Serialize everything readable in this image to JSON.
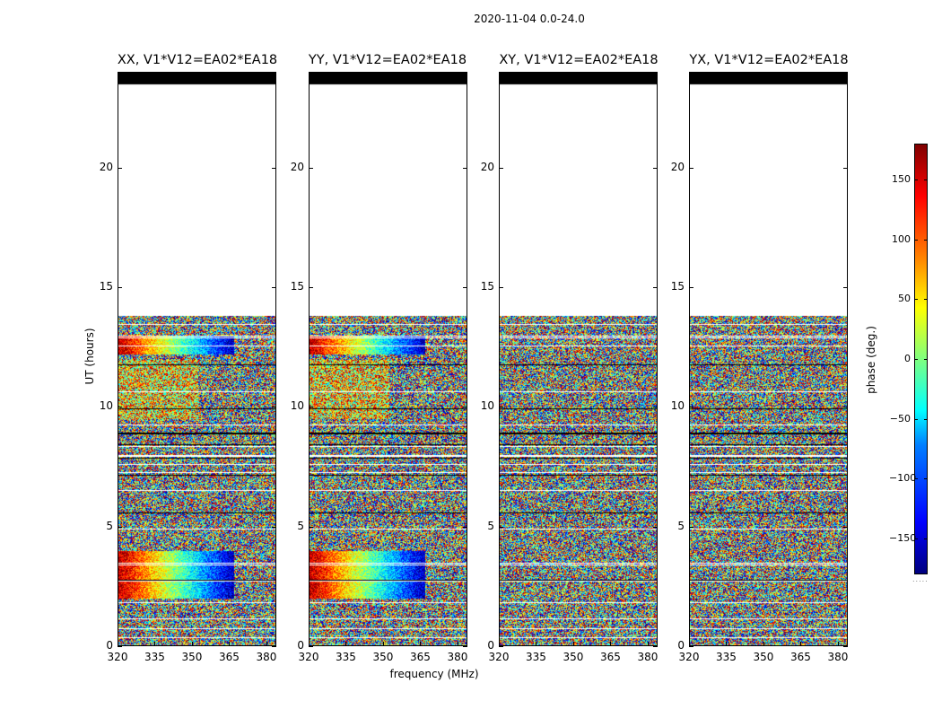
{
  "figure": {
    "suptitle": "2020-11-04 0.0-24.0",
    "xlabel": "frequency (MHz)",
    "ylabel": "UT (hours)",
    "colorbar_label": "phase (deg.)",
    "colorbar_ticks": [
      "150",
      "100",
      "50",
      "0",
      "−50",
      "−100",
      "−150"
    ],
    "colorbar_dots": "....."
  },
  "panels": [
    {
      "title": "XX, V1*V12=EA02*EA18",
      "kind": "parallel"
    },
    {
      "title": "YY, V1*V12=EA02*EA18",
      "kind": "parallel"
    },
    {
      "title": "XY, V1*V12=EA02*EA18",
      "kind": "cross"
    },
    {
      "title": "YX, V1*V12=EA02*EA18",
      "kind": "cross"
    }
  ],
  "chart_data": {
    "type": "heatmap",
    "title": "2020-11-04 0.0-24.0",
    "xlabel": "frequency (MHz)",
    "ylabel": "UT (hours)",
    "x_ticks": [
      "320",
      "335",
      "350",
      "365",
      "380"
    ],
    "x_range": [
      320,
      384
    ],
    "y_ticks": [
      "0",
      "5",
      "10",
      "15",
      "20"
    ],
    "y_range": [
      0,
      24
    ],
    "data_extent_hours": [
      0,
      13.8
    ],
    "flagged_top_hours": [
      23.5,
      24.0
    ],
    "colorbar": {
      "label": "phase (deg.)",
      "range": [
        -180,
        180
      ],
      "ticks": [
        150,
        100,
        50,
        0,
        -50,
        -100,
        -150
      ],
      "cmap": "jet"
    },
    "series": [
      {
        "name": "XX, V1*V12=EA02*EA18"
      },
      {
        "name": "YY, V1*V12=EA02*EA18"
      },
      {
        "name": "XY, V1*V12=EA02*EA18"
      },
      {
        "name": "YX, V1*V12=EA02*EA18"
      }
    ]
  }
}
